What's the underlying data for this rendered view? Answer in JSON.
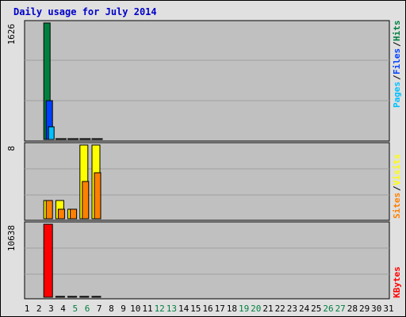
{
  "title": "Daily usage for July 2014",
  "colors": {
    "hits": "#008040",
    "files": "#0040ff",
    "pages": "#00c0ff",
    "visits": "#ffff00",
    "sites": "#ff8000",
    "kbytes": "#ff0000",
    "panel_bg": "#c0c0c0",
    "weekend_day": "#008040",
    "weekday": "#000000",
    "title": "#0000c8"
  },
  "chart_data": [
    {
      "type": "bar",
      "panel": "hits-files-pages",
      "ymax_label": "1626",
      "ylim": [
        0,
        1626
      ],
      "legend": [
        {
          "text": "Hits",
          "color": "#008040"
        },
        {
          "text": "Files",
          "color": "#0040ff"
        },
        {
          "text": "Pages",
          "color": "#00c0ff"
        }
      ],
      "series": [
        {
          "name": "Hits",
          "values": [
            0,
            1626,
            3,
            4,
            15,
            13,
            0,
            0,
            0,
            0,
            0,
            0,
            0,
            0,
            0,
            0,
            0,
            0,
            0,
            0,
            0,
            0,
            0,
            0,
            0,
            0,
            0,
            0,
            0,
            0,
            0
          ]
        },
        {
          "name": "Files",
          "values": [
            0,
            545,
            2,
            2,
            10,
            8,
            0,
            0,
            0,
            0,
            0,
            0,
            0,
            0,
            0,
            0,
            0,
            0,
            0,
            0,
            0,
            0,
            0,
            0,
            0,
            0,
            0,
            0,
            0,
            0,
            0
          ]
        },
        {
          "name": "Pages",
          "values": [
            0,
            180,
            2,
            2,
            8,
            7,
            0,
            0,
            0,
            0,
            0,
            0,
            0,
            0,
            0,
            0,
            0,
            0,
            0,
            0,
            0,
            0,
            0,
            0,
            0,
            0,
            0,
            0,
            0,
            0,
            0
          ]
        }
      ]
    },
    {
      "type": "bar",
      "panel": "visits-sites",
      "ymax_label": "8",
      "ylim": [
        0,
        8
      ],
      "legend": [
        {
          "text": "Visits",
          "color": "#ffff00"
        },
        {
          "text": "Sites",
          "color": "#ff8000"
        }
      ],
      "series": [
        {
          "name": "Visits",
          "values": [
            0,
            2,
            2,
            1,
            8,
            8,
            0,
            0,
            0,
            0,
            0,
            0,
            0,
            0,
            0,
            0,
            0,
            0,
            0,
            0,
            0,
            0,
            0,
            0,
            0,
            0,
            0,
            0,
            0,
            0,
            0
          ]
        },
        {
          "name": "Sites",
          "values": [
            0,
            2,
            1,
            1,
            4,
            5,
            0,
            0,
            0,
            0,
            0,
            0,
            0,
            0,
            0,
            0,
            0,
            0,
            0,
            0,
            0,
            0,
            0,
            0,
            0,
            0,
            0,
            0,
            0,
            0,
            0
          ]
        }
      ]
    },
    {
      "type": "bar",
      "panel": "kbytes",
      "ymax_label": "10638",
      "ylim": [
        0,
        10638
      ],
      "legend": [
        {
          "text": "KBytes",
          "color": "#ff0000"
        }
      ],
      "series": [
        {
          "name": "KBytes",
          "values": [
            0,
            10638,
            10,
            10,
            15,
            15,
            0,
            0,
            0,
            0,
            0,
            0,
            0,
            0,
            0,
            0,
            0,
            0,
            0,
            0,
            0,
            0,
            0,
            0,
            0,
            0,
            0,
            0,
            0,
            0,
            0
          ]
        }
      ]
    }
  ],
  "days": [
    {
      "label": "1",
      "weekend": false
    },
    {
      "label": "2",
      "weekend": false
    },
    {
      "label": "3",
      "weekend": false
    },
    {
      "label": "4",
      "weekend": false
    },
    {
      "label": "5",
      "weekend": true
    },
    {
      "label": "6",
      "weekend": true
    },
    {
      "label": "7",
      "weekend": false
    },
    {
      "label": "8",
      "weekend": false
    },
    {
      "label": "9",
      "weekend": false
    },
    {
      "label": "10",
      "weekend": false
    },
    {
      "label": "11",
      "weekend": false
    },
    {
      "label": "12",
      "weekend": true
    },
    {
      "label": "13",
      "weekend": true
    },
    {
      "label": "14",
      "weekend": false
    },
    {
      "label": "15",
      "weekend": false
    },
    {
      "label": "16",
      "weekend": false
    },
    {
      "label": "17",
      "weekend": false
    },
    {
      "label": "18",
      "weekend": false
    },
    {
      "label": "19",
      "weekend": true
    },
    {
      "label": "20",
      "weekend": true
    },
    {
      "label": "21",
      "weekend": false
    },
    {
      "label": "22",
      "weekend": false
    },
    {
      "label": "23",
      "weekend": false
    },
    {
      "label": "24",
      "weekend": false
    },
    {
      "label": "25",
      "weekend": false
    },
    {
      "label": "26",
      "weekend": true
    },
    {
      "label": "27",
      "weekend": true
    },
    {
      "label": "28",
      "weekend": false
    },
    {
      "label": "29",
      "weekend": false
    },
    {
      "label": "30",
      "weekend": false
    },
    {
      "label": "31",
      "weekend": false
    }
  ]
}
